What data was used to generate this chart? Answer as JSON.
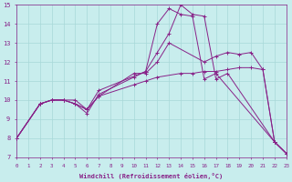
{
  "xlabel": "Windchill (Refroidissement éolien,°C)",
  "bg_color": "#c8eded",
  "line_color": "#882288",
  "grid_color": "#a8d8d8",
  "xlim": [
    0,
    23
  ],
  "ylim": [
    7,
    15
  ],
  "xticks": [
    0,
    1,
    2,
    3,
    4,
    5,
    6,
    7,
    8,
    9,
    10,
    11,
    12,
    13,
    14,
    15,
    16,
    17,
    18,
    19,
    20,
    21,
    22,
    23
  ],
  "yticks": [
    7,
    8,
    9,
    10,
    11,
    12,
    13,
    14,
    15
  ],
  "series": [
    {
      "x": [
        0,
        2,
        3,
        4,
        5,
        6,
        7,
        11,
        12,
        13,
        14,
        15,
        16,
        17,
        18,
        22,
        23
      ],
      "y": [
        8.0,
        9.8,
        10.0,
        10.0,
        10.0,
        9.5,
        10.5,
        11.5,
        12.5,
        13.5,
        15.0,
        14.5,
        14.4,
        11.1,
        11.4,
        7.8,
        7.2
      ]
    },
    {
      "x": [
        0,
        2,
        3,
        4,
        5,
        6,
        7,
        10,
        11,
        12,
        13,
        14,
        15,
        16,
        17,
        22,
        23
      ],
      "y": [
        8.0,
        9.8,
        10.0,
        10.0,
        9.8,
        9.3,
        10.3,
        11.2,
        11.5,
        14.0,
        14.8,
        14.5,
        14.4,
        11.1,
        11.4,
        7.8,
        7.2
      ]
    },
    {
      "x": [
        0,
        2,
        3,
        4,
        5,
        6,
        7,
        10,
        11,
        12,
        14,
        15,
        16,
        17,
        18,
        19,
        20,
        21,
        22,
        23
      ],
      "y": [
        8.0,
        9.8,
        10.0,
        10.0,
        9.8,
        9.5,
        10.2,
        10.8,
        11.0,
        11.2,
        11.4,
        11.4,
        11.5,
        11.5,
        11.6,
        11.7,
        11.7,
        11.6,
        7.8,
        7.2
      ]
    },
    {
      "x": [
        0,
        2,
        3,
        4,
        5,
        6,
        7,
        10,
        11,
        12,
        13,
        16,
        17,
        18,
        19,
        20,
        21,
        22,
        23
      ],
      "y": [
        8.0,
        9.8,
        10.0,
        10.0,
        9.8,
        9.5,
        10.2,
        11.4,
        11.4,
        12.0,
        13.0,
        12.0,
        12.3,
        12.5,
        12.4,
        12.5,
        11.6,
        7.8,
        7.2
      ]
    }
  ]
}
